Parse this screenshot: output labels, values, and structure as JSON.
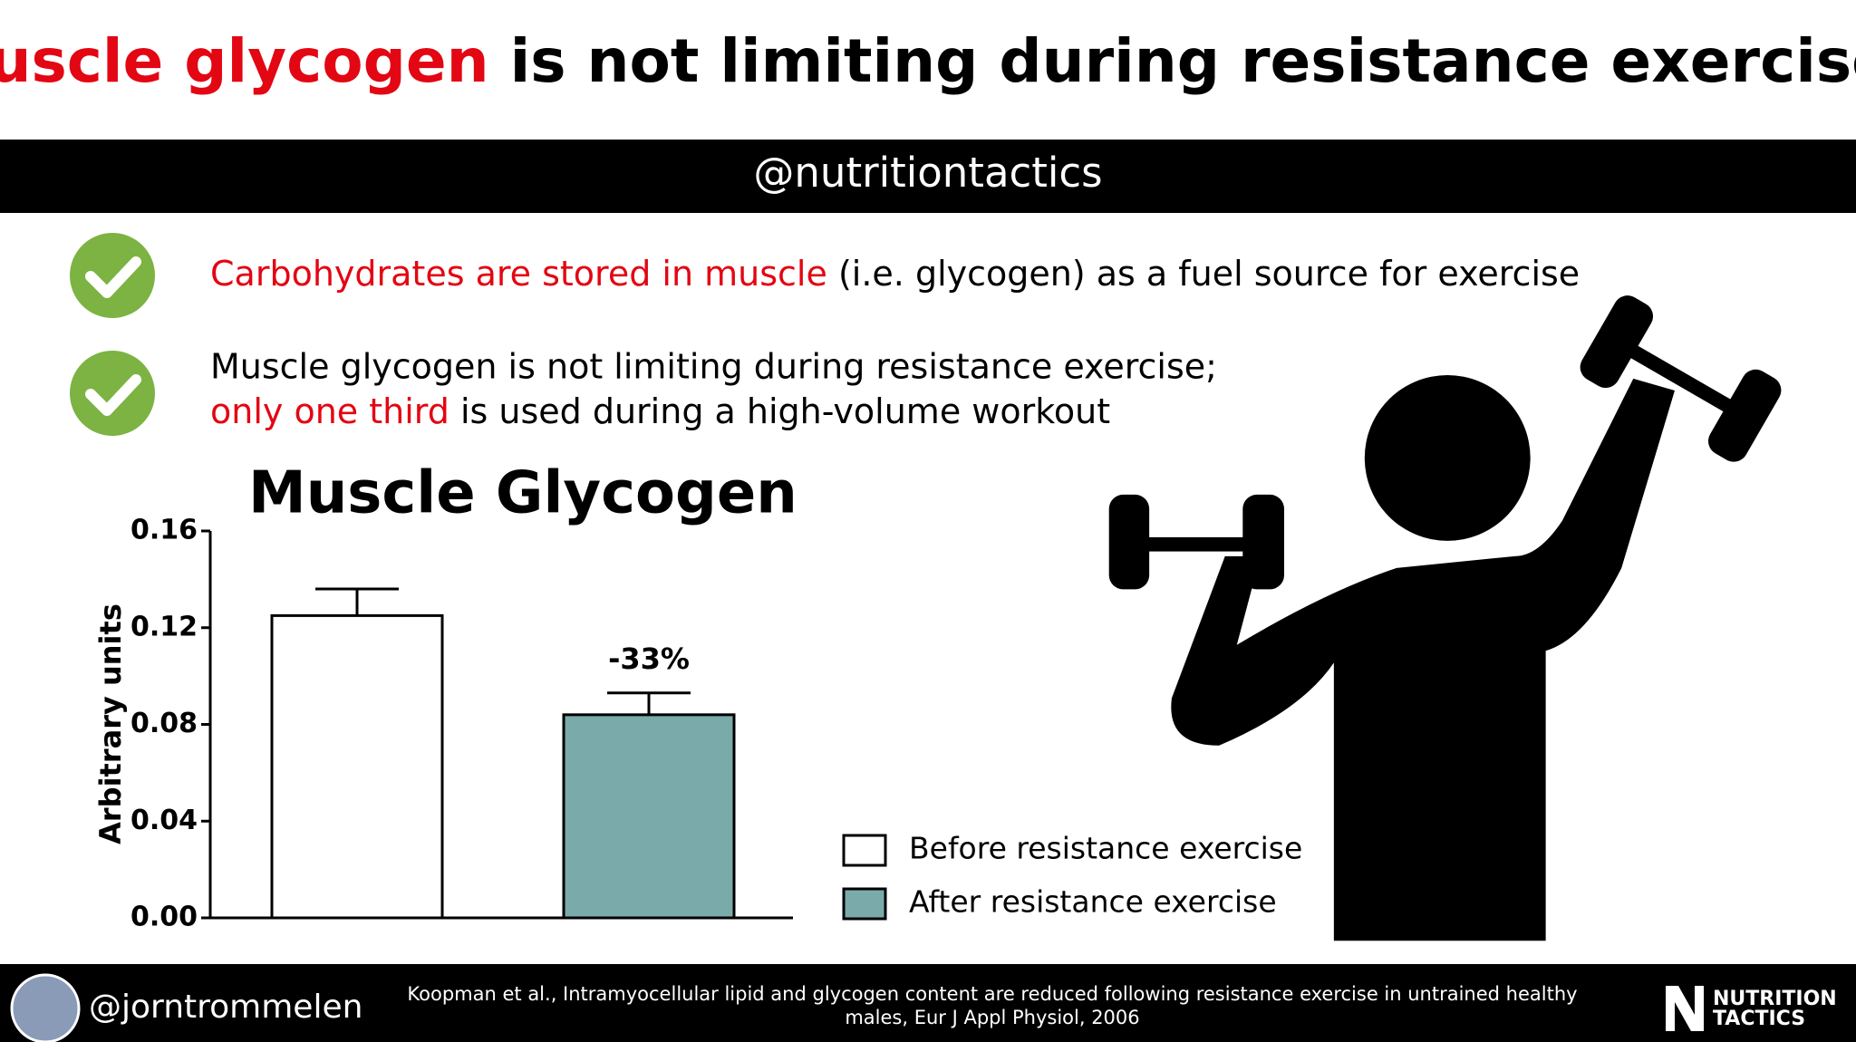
{
  "header": {
    "title_highlight": "Muscle glycogen",
    "title_rest": " is not limiting during resistance exercise?",
    "handle": "@nutritiontactics"
  },
  "bullets": [
    {
      "highlight": "Carbohydrates are stored in muscle",
      "rest": " (i.e. glycogen) as a fuel source for exercise"
    },
    {
      "line1": "Muscle glycogen is not limiting during resistance exercise;",
      "highlight": "only one third",
      "rest": " is used during a high-volume workout"
    }
  ],
  "chart_data": {
    "type": "bar",
    "title": "Muscle Glycogen",
    "ylabel": "Arbitrary units",
    "categories": [
      null
    ],
    "series": [
      {
        "name": "Before resistance exercise",
        "color": "#ffffff",
        "values": [
          0.125
        ],
        "errors": [
          0.011
        ]
      },
      {
        "name": "After resistance exercise",
        "color": "#7aabaa",
        "values": [
          0.084
        ],
        "errors": [
          0.009
        ],
        "annotation": "-33%"
      }
    ],
    "ylim": [
      0,
      0.16
    ],
    "yticks": [
      {
        "value": 0,
        "label": "0.00"
      },
      0.04,
      0.08,
      0.12,
      0.16
    ]
  },
  "footer": {
    "handle": "@jorntrommelen",
    "citation": [
      "Koopman et al., Intramyocellular lipid and glycogen content are reduced following resistance exercise in untrained healthy",
      "males, Eur J Appl Physiol, 2006"
    ],
    "logo": [
      "NUTRITION",
      "TACTICS"
    ]
  }
}
